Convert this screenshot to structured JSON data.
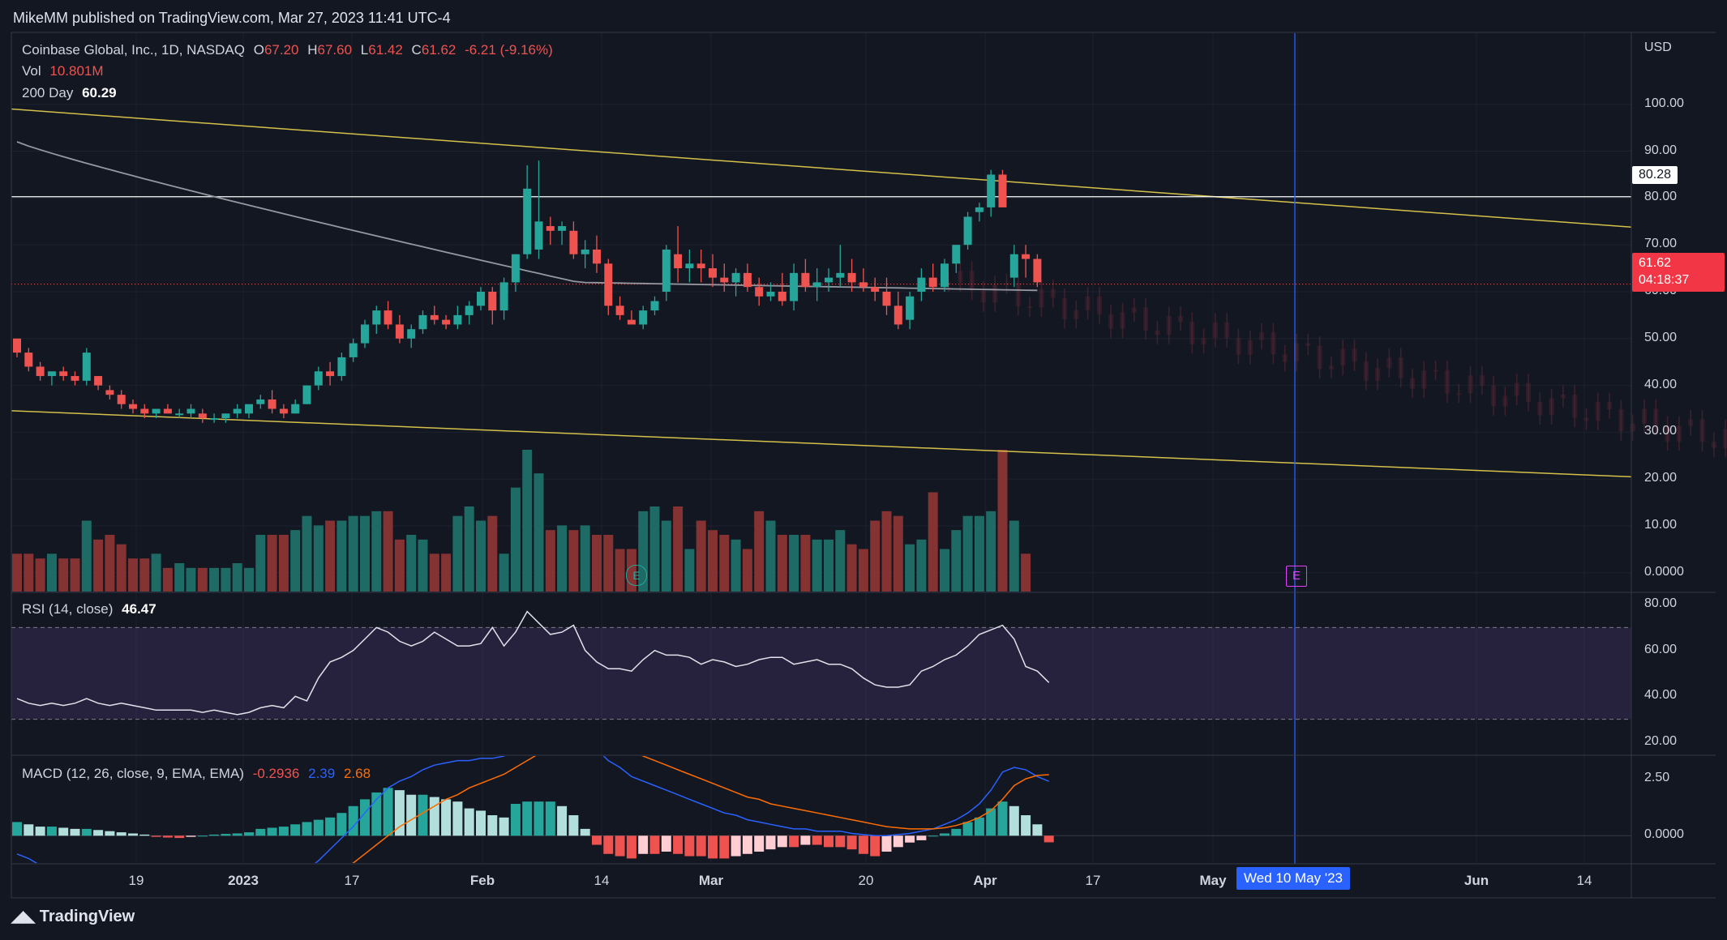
{
  "header": {
    "text": "MikeMM published on TradingView.com, Mar 27, 2023 11:41 UTC-4"
  },
  "legend": {
    "title": "Coinbase Global, Inc., 1D, NASDAQ",
    "o_label": "O",
    "o": "67.20",
    "h_label": "H",
    "h": "67.60",
    "l_label": "L",
    "l": "61.42",
    "c_label": "C",
    "c": "61.62",
    "change": "-6.21 (-9.16%)",
    "vol_label": "Vol",
    "vol": "10.801M",
    "ma_label": "200 Day",
    "ma": "60.29",
    "rsi_label": "RSI (14, close)",
    "rsi": "46.47",
    "macd_label": "MACD (12, 26, close, 9, EMA, EMA)",
    "macd_hist": "-0.2936",
    "macd_line": "2.39",
    "macd_signal": "2.68"
  },
  "price_axis": {
    "currency": "USD",
    "ticks": [
      "100.00",
      "90.00",
      "80.00",
      "70.00",
      "60.00",
      "50.00",
      "40.00",
      "30.00",
      "20.00",
      "10.00",
      "0.0000"
    ],
    "level_tag": "80.28",
    "last_price_tag": "61.62",
    "countdown": "04:18:37"
  },
  "rsi_axis": {
    "ticks": [
      "80.00",
      "60.00",
      "40.00",
      "20.00"
    ]
  },
  "macd_axis": {
    "ticks": [
      "2.50",
      "0.0000"
    ]
  },
  "time_axis": {
    "ticks": [
      "19",
      "2023",
      "17",
      "Feb",
      "14",
      "Mar",
      "20",
      "Apr",
      "17",
      "May",
      "Jun",
      "14"
    ],
    "cursor_label": "Wed 10 May '23"
  },
  "earnings_marker": "E",
  "footer": {
    "brand": "TradingView"
  },
  "colors": {
    "up": "#26a69a",
    "down": "#ef5350",
    "trendline": "#d4c04a",
    "ma": "#9598a1",
    "rsi": "#e0e3eb",
    "macd": "#2962ff",
    "signal": "#ff6d00",
    "cursor": "#2962ff"
  },
  "chart_data": {
    "type": "candlestick",
    "symbol": "Coinbase Global, Inc.",
    "interval": "1D",
    "exchange": "NASDAQ",
    "price_range": [
      -4,
      115
    ],
    "horizontal_level": 80.28,
    "last_close": 61.62,
    "ma200_end": 60.29,
    "trendlines": [
      {
        "points": [
          [
            0,
            99.0
          ],
          [
            162,
            73.8
          ]
        ]
      },
      {
        "points": [
          [
            0,
            34.6
          ],
          [
            162,
            20.5
          ]
        ]
      }
    ],
    "candles": [
      [
        50,
        50,
        46,
        47
      ],
      [
        47,
        48,
        43,
        44
      ],
      [
        44,
        45,
        41,
        42
      ],
      [
        42,
        43,
        40,
        43
      ],
      [
        43,
        44,
        41,
        42
      ],
      [
        42,
        43,
        40,
        41
      ],
      [
        41,
        48,
        40,
        47
      ],
      [
        42,
        42,
        39,
        40
      ],
      [
        39,
        40,
        37,
        38
      ],
      [
        38,
        39,
        35,
        36
      ],
      [
        36,
        37,
        34,
        35
      ],
      [
        35,
        36,
        33,
        34
      ],
      [
        34,
        35,
        33,
        35
      ],
      [
        35,
        36,
        34,
        34
      ],
      [
        34,
        35,
        33,
        34
      ],
      [
        34,
        36,
        33,
        35
      ],
      [
        34,
        35,
        32,
        33
      ],
      [
        33,
        34,
        32,
        33
      ],
      [
        33,
        34,
        32,
        34
      ],
      [
        34,
        36,
        33,
        35
      ],
      [
        34,
        36,
        33,
        36
      ],
      [
        36,
        38,
        35,
        37
      ],
      [
        37,
        39,
        34,
        35
      ],
      [
        35,
        36,
        33,
        34
      ],
      [
        34,
        37,
        34,
        36
      ],
      [
        36,
        40,
        36,
        40
      ],
      [
        40,
        44,
        39,
        43
      ],
      [
        43,
        45,
        40,
        42
      ],
      [
        42,
        47,
        41,
        46
      ],
      [
        46,
        50,
        45,
        49
      ],
      [
        49,
        54,
        48,
        53
      ],
      [
        53,
        57,
        51,
        56
      ],
      [
        56,
        58,
        52,
        53
      ],
      [
        53,
        55,
        49,
        50
      ],
      [
        50,
        53,
        48,
        52
      ],
      [
        52,
        56,
        51,
        55
      ],
      [
        55,
        57,
        53,
        54
      ],
      [
        54,
        55,
        52,
        53
      ],
      [
        53,
        57,
        52,
        55
      ],
      [
        55,
        58,
        53,
        57
      ],
      [
        57,
        61,
        56,
        60
      ],
      [
        60,
        61,
        53,
        56
      ],
      [
        56,
        63,
        54,
        62
      ],
      [
        62,
        68,
        60,
        68
      ],
      [
        68,
        87,
        67,
        82
      ],
      [
        69,
        88,
        67,
        75
      ],
      [
        74,
        76,
        70,
        73
      ],
      [
        73,
        75,
        70,
        74
      ],
      [
        73,
        75,
        67,
        68
      ],
      [
        68,
        71,
        65,
        69
      ],
      [
        69,
        72,
        64,
        66
      ],
      [
        66,
        67,
        55,
        57
      ],
      [
        57,
        59,
        54,
        55
      ],
      [
        54,
        56,
        53,
        53
      ],
      [
        53,
        57,
        52,
        56
      ],
      [
        56,
        59,
        55,
        58
      ],
      [
        60,
        70,
        58,
        69
      ],
      [
        68,
        74,
        62,
        65
      ],
      [
        65,
        69,
        62,
        66
      ],
      [
        66,
        69,
        62,
        65
      ],
      [
        65,
        68,
        61,
        63
      ],
      [
        63,
        66,
        60,
        62
      ],
      [
        62,
        65,
        59,
        64
      ],
      [
        64,
        66,
        60,
        61
      ],
      [
        61,
        63,
        57,
        59
      ],
      [
        59,
        62,
        58,
        60
      ],
      [
        60,
        64,
        57,
        58
      ],
      [
        58,
        66,
        56,
        64
      ],
      [
        64,
        67,
        60,
        61
      ],
      [
        61,
        65,
        58,
        62
      ],
      [
        62,
        65,
        60,
        63
      ],
      [
        63,
        70,
        61,
        64
      ],
      [
        64,
        67,
        60,
        62
      ],
      [
        62,
        65,
        60,
        61
      ],
      [
        61,
        63,
        58,
        60
      ],
      [
        60,
        63,
        55,
        57
      ],
      [
        57,
        60,
        52,
        53
      ],
      [
        54,
        60,
        52,
        59
      ],
      [
        60,
        65,
        58,
        63
      ],
      [
        63,
        66,
        60,
        61
      ],
      [
        61,
        67,
        60,
        66
      ],
      [
        66,
        70,
        64,
        70
      ],
      [
        70,
        77,
        69,
        76
      ],
      [
        77,
        79,
        75,
        78
      ],
      [
        78,
        86,
        76,
        85
      ],
      [
        85,
        86,
        78,
        78
      ],
      [
        63,
        70,
        61,
        68
      ],
      [
        68,
        70,
        63,
        67
      ],
      [
        67,
        68,
        61,
        62
      ]
    ],
    "volume_range": [
      0,
      30
    ],
    "volume": [
      8,
      8,
      7,
      8,
      7,
      7,
      15,
      11,
      12,
      10,
      7,
      7,
      8,
      5,
      6,
      5,
      5,
      5,
      5,
      6,
      5,
      12,
      12,
      12,
      13,
      16,
      14,
      15,
      15,
      16,
      16,
      17,
      17,
      11,
      12,
      11,
      8,
      8,
      16,
      18,
      15,
      16,
      8,
      22,
      30,
      25,
      13,
      14,
      13,
      14,
      12,
      12,
      9,
      9,
      17,
      18,
      15,
      18,
      9,
      15,
      13,
      12,
      11,
      9,
      17,
      15,
      12,
      12,
      12,
      11,
      11,
      13,
      10,
      9,
      15,
      17,
      16,
      10,
      11,
      21,
      9,
      13,
      16,
      16,
      17,
      30,
      15,
      8
    ],
    "rsi_range": [
      15,
      85
    ],
    "rsi_bands": [
      70,
      30
    ],
    "rsi": [
      39,
      37,
      36,
      37,
      36,
      37,
      39,
      37,
      36,
      37,
      36,
      35,
      34,
      34,
      34,
      34,
      33,
      34,
      33,
      32,
      33,
      35,
      36,
      35,
      40,
      38,
      48,
      55,
      57,
      60,
      65,
      70,
      68,
      64,
      62,
      64,
      68,
      65,
      62,
      62,
      63,
      70,
      62,
      68,
      77,
      72,
      67,
      68,
      71,
      60,
      55,
      52,
      52,
      51,
      56,
      60,
      58,
      58,
      57,
      54,
      56,
      55,
      53,
      54,
      56,
      57,
      57,
      54,
      55,
      56,
      54,
      54,
      52,
      48,
      45,
      44,
      44,
      45,
      51,
      53,
      56,
      58,
      62,
      67,
      69,
      71,
      65,
      53,
      51,
      46
    ],
    "macd_range": [
      -1.2,
      3.5
    ],
    "macd": [
      -0.8,
      -1.0,
      -1.3,
      -1.5,
      -1.6,
      -1.8,
      -1.7,
      -1.8,
      -1.9,
      -2.0,
      -2.2,
      -2.3,
      -2.4,
      -2.5,
      -2.6,
      -2.6,
      -2.7,
      -2.7,
      -2.7,
      -2.6,
      -2.5,
      -2.3,
      -2.2,
      -2.1,
      -1.9,
      -1.5,
      -1.1,
      -0.6,
      -0.1,
      0.4,
      1.0,
      1.6,
      2.1,
      2.4,
      2.6,
      2.9,
      3.1,
      3.2,
      3.3,
      3.3,
      3.4,
      3.4,
      3.5,
      3.8,
      4.3,
      4.6,
      4.7,
      4.7,
      4.5,
      4.2,
      3.8,
      3.3,
      3.0,
      2.6,
      2.4,
      2.2,
      2.0,
      1.8,
      1.6,
      1.4,
      1.2,
      1.0,
      0.9,
      0.7,
      0.6,
      0.5,
      0.4,
      0.3,
      0.3,
      0.2,
      0.2,
      0.2,
      0.1,
      0.05,
      0.0,
      0.0,
      0.05,
      0.1,
      0.2,
      0.3,
      0.5,
      0.7,
      1.0,
      1.4,
      2.0,
      2.8,
      3.0,
      2.9,
      2.6,
      2.39
    ],
    "signal": [
      -1.5,
      -1.6,
      -1.7,
      -1.8,
      -1.8,
      -1.9,
      -1.9,
      -1.9,
      -2.0,
      -2.0,
      -2.1,
      -2.2,
      -2.3,
      -2.4,
      -2.5,
      -2.6,
      -2.6,
      -2.7,
      -2.7,
      -2.7,
      -2.7,
      -2.6,
      -2.6,
      -2.5,
      -2.4,
      -2.3,
      -2.1,
      -1.9,
      -1.6,
      -1.2,
      -0.8,
      -0.4,
      0.0,
      0.4,
      0.7,
      1.0,
      1.3,
      1.6,
      1.8,
      2.1,
      2.3,
      2.5,
      2.7,
      3.0,
      3.3,
      3.6,
      3.9,
      4.1,
      4.2,
      4.3,
      4.2,
      4.1,
      3.9,
      3.7,
      3.5,
      3.3,
      3.1,
      2.9,
      2.7,
      2.5,
      2.3,
      2.1,
      1.9,
      1.7,
      1.6,
      1.4,
      1.3,
      1.2,
      1.1,
      1.0,
      0.9,
      0.8,
      0.7,
      0.6,
      0.5,
      0.4,
      0.35,
      0.3,
      0.3,
      0.3,
      0.35,
      0.45,
      0.6,
      0.8,
      1.1,
      1.6,
      2.2,
      2.5,
      2.65,
      2.68
    ],
    "histogram": [
      0.6,
      0.5,
      0.4,
      0.4,
      0.35,
      0.3,
      0.3,
      0.25,
      0.2,
      0.15,
      0.1,
      0.05,
      -0.05,
      -0.08,
      -0.1,
      -0.05,
      0.0,
      0.05,
      0.08,
      0.1,
      0.15,
      0.3,
      0.35,
      0.4,
      0.5,
      0.6,
      0.7,
      0.8,
      1.0,
      1.3,
      1.6,
      1.9,
      2.1,
      2.0,
      1.8,
      1.8,
      1.7,
      1.6,
      1.5,
      1.2,
      1.1,
      0.9,
      0.8,
      1.4,
      1.5,
      1.5,
      1.5,
      1.3,
      0.9,
      0.3,
      -0.4,
      -0.8,
      -0.9,
      -1.0,
      -0.8,
      -0.8,
      -0.7,
      -0.8,
      -0.9,
      -0.9,
      -1.0,
      -1.0,
      -0.9,
      -0.8,
      -0.7,
      -0.6,
      -0.5,
      -0.5,
      -0.4,
      -0.4,
      -0.5,
      -0.5,
      -0.6,
      -0.8,
      -0.9,
      -0.7,
      -0.5,
      -0.3,
      -0.2,
      0.0,
      0.1,
      0.3,
      0.6,
      0.8,
      1.2,
      1.5,
      1.3,
      0.9,
      0.5,
      -0.29
    ]
  }
}
